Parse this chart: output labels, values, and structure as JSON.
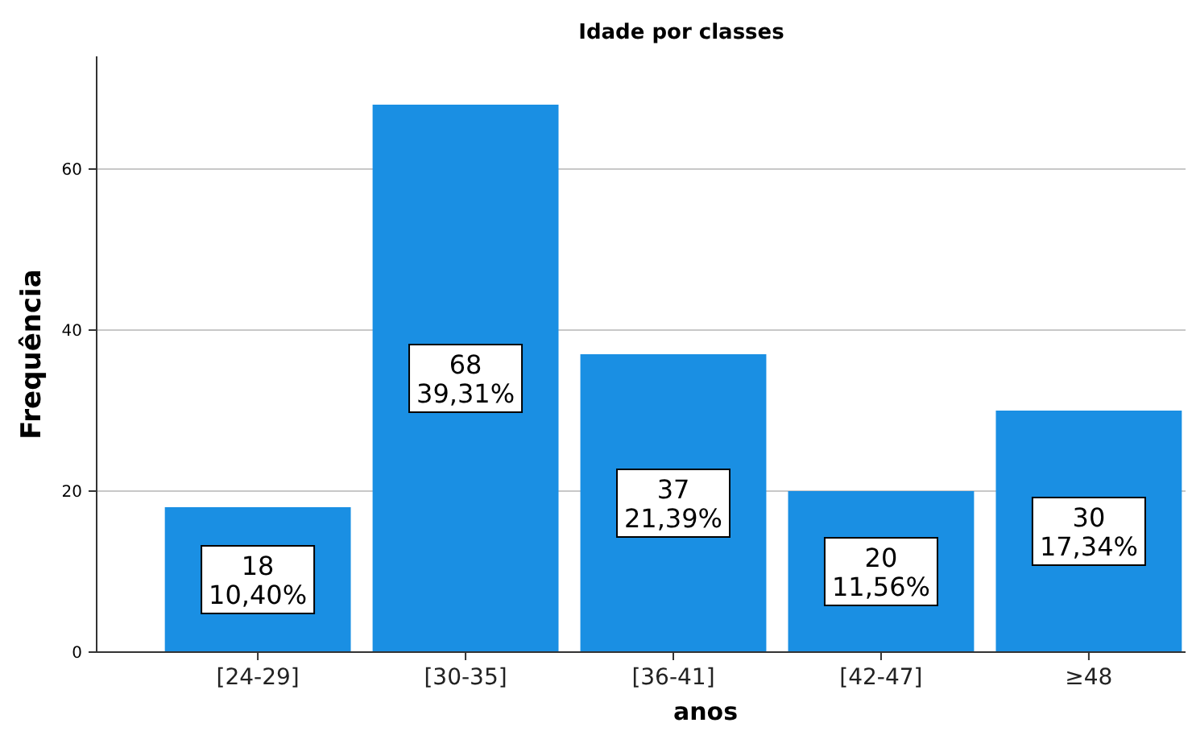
{
  "chart_data": {
    "type": "bar",
    "title": "Idade por classes",
    "xlabel": "anos",
    "ylabel": "Frequência",
    "categories": [
      "[24-29]",
      "[30-35]",
      "[36-41]",
      "[42-47]",
      "≥48"
    ],
    "values": [
      18,
      68,
      37,
      20,
      30
    ],
    "value_labels": [
      "18\n10,40%",
      "68\n39,31%",
      "37\n21,39%",
      "20\n11,56%",
      "30\n17,34%"
    ],
    "color": "#1a8fe3",
    "ylim": [
      0,
      74
    ],
    "yticks": [
      0,
      20,
      40,
      60
    ],
    "grid": "y"
  }
}
